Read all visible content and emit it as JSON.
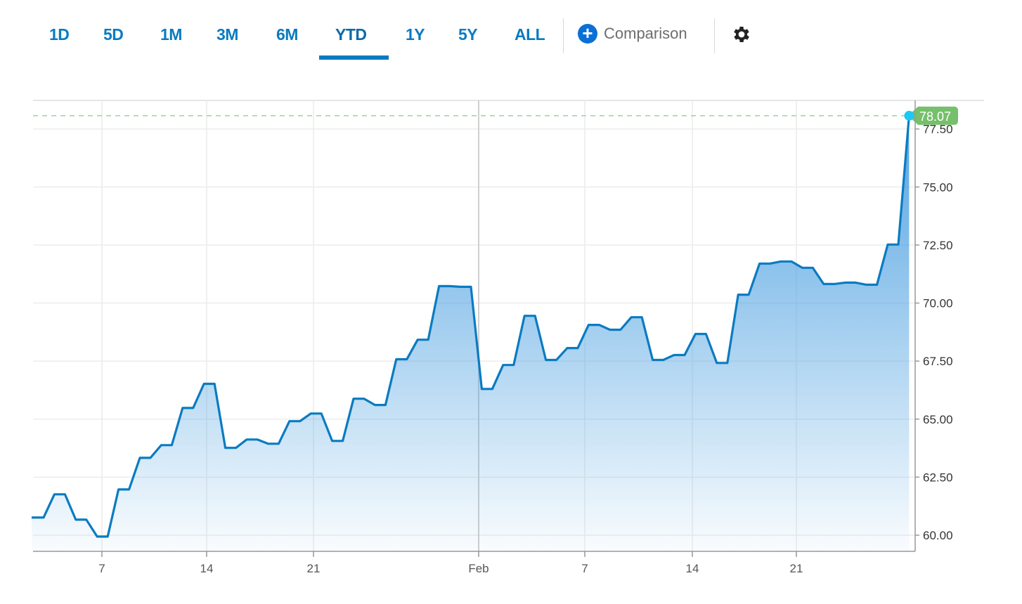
{
  "toolbar": {
    "tabs": [
      {
        "label": "1D"
      },
      {
        "label": "5D"
      },
      {
        "label": "1M"
      },
      {
        "label": "3M"
      },
      {
        "label": "6M"
      },
      {
        "label": "YTD"
      },
      {
        "label": "1Y"
      },
      {
        "label": "5Y"
      },
      {
        "label": "ALL"
      }
    ],
    "active_tab": "YTD",
    "comparison_label": "Comparison",
    "comparison_icon": "plus-circle-icon",
    "settings_icon": "gear-icon"
  },
  "chart_data": {
    "type": "area",
    "title": "",
    "xlabel": "",
    "ylabel": "",
    "x_tick_labels": [
      "7",
      "14",
      "21",
      "Feb",
      "7",
      "14",
      "21"
    ],
    "y_tick_labels": [
      "60.00",
      "62.50",
      "65.00",
      "67.50",
      "70.00",
      "72.50",
      "75.00",
      "77.50"
    ],
    "ylim": [
      59.3,
      79
    ],
    "grid": true,
    "values": [
      60.76,
      61.76,
      60.67,
      59.94,
      61.97,
      63.33,
      63.88,
      65.48,
      66.52,
      63.76,
      64.12,
      63.94,
      64.91,
      65.24,
      64.06,
      65.88,
      65.61,
      67.58,
      68.42,
      70.73,
      70.7,
      66.3,
      67.33,
      69.45,
      67.55,
      68.06,
      69.06,
      68.85,
      69.39,
      67.55,
      67.76,
      68.67,
      67.42,
      70.36,
      71.7,
      71.79,
      71.52,
      70.82,
      70.88,
      70.79,
      72.52,
      78.07
    ],
    "last_value_label": "78.07",
    "colors": {
      "line": "#0a7bc1",
      "fill_top": "#4a9fe0",
      "last_badge": "#76bf6b",
      "last_marker": "#1ec8f5",
      "accent": "#0a7bc1"
    }
  }
}
